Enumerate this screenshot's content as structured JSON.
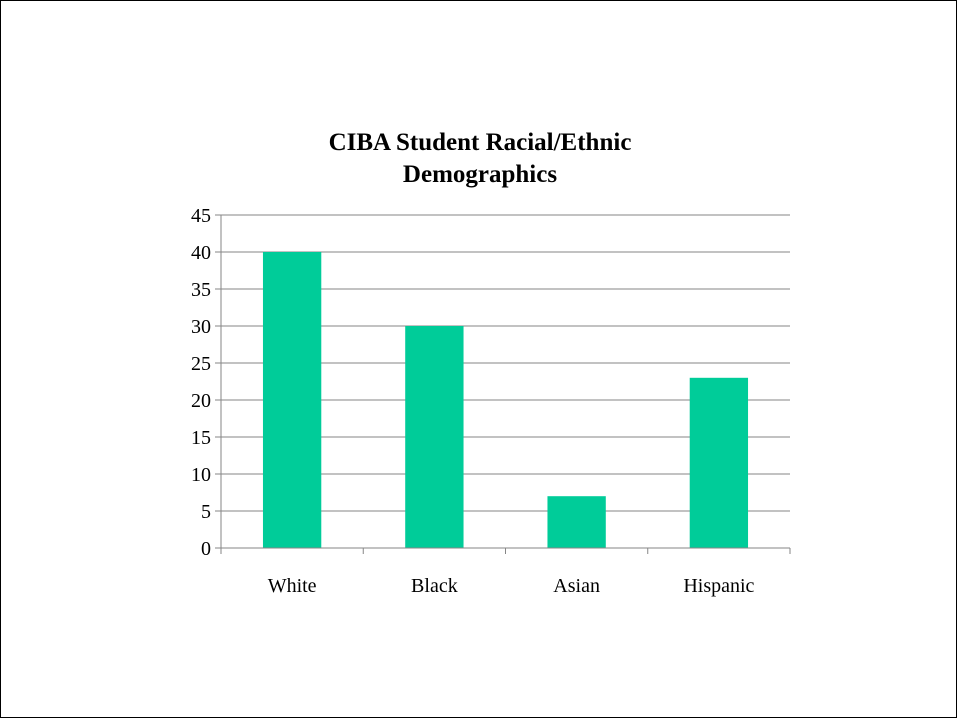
{
  "chart_data": {
    "type": "bar",
    "title_lines": [
      "CIBA Student Racial/Ethnic",
      "Demographics"
    ],
    "categories": [
      "White",
      "Black",
      "Asian",
      "Hispanic"
    ],
    "values": [
      40,
      30,
      7,
      23
    ],
    "ylim": [
      0,
      45
    ],
    "y_ticks": [
      0,
      5,
      10,
      15,
      20,
      25,
      30,
      35,
      40,
      45
    ],
    "grid": true,
    "legend": "none",
    "bar_color": "#00CC99",
    "grid_color": "#868686",
    "axis_color": "#868686"
  }
}
